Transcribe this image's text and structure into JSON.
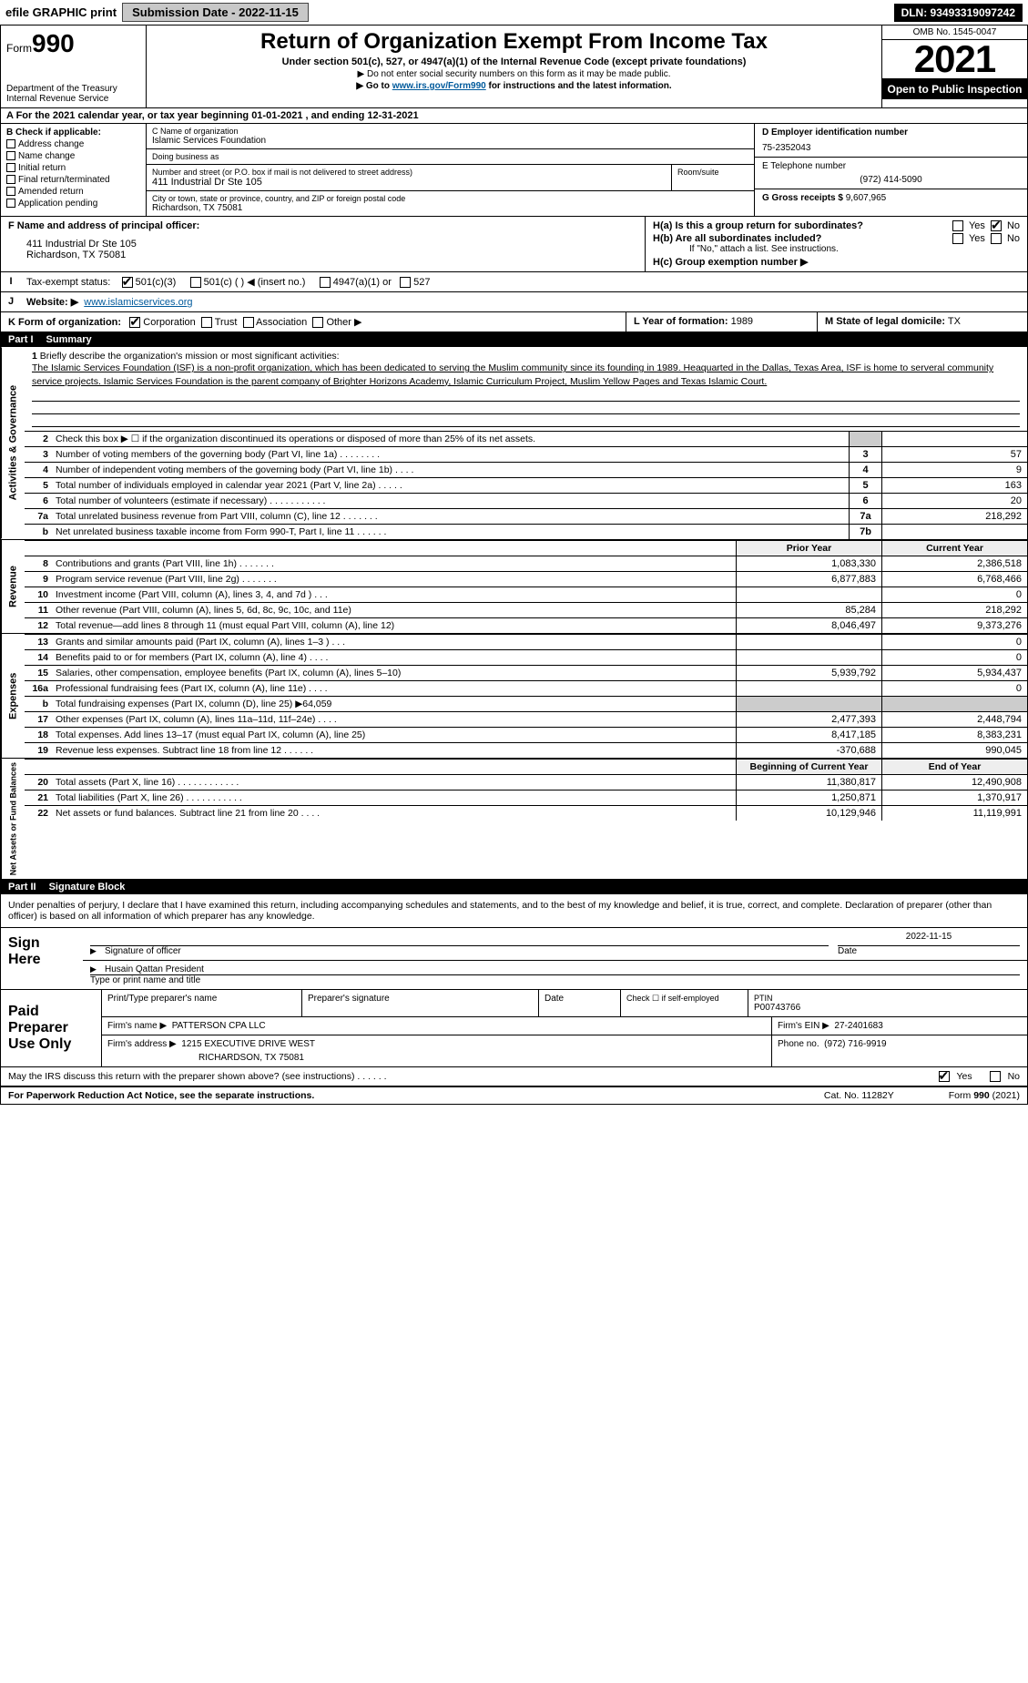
{
  "topbar": {
    "efile": "efile GRAPHIC print",
    "submission": "Submission Date - 2022-11-15",
    "dln": "DLN: 93493319097242"
  },
  "header": {
    "form_word": "Form",
    "form_no": "990",
    "dept": "Department of the Treasury",
    "irs": "Internal Revenue Service",
    "title": "Return of Organization Exempt From Income Tax",
    "subtitle": "Under section 501(c), 527, or 4947(a)(1) of the Internal Revenue Code (except private foundations)",
    "note1": "▶ Do not enter social security numbers on this form as it may be made public.",
    "note2_pre": "▶ Go to ",
    "note2_link": "www.irs.gov/Form990",
    "note2_post": " for instructions and the latest information.",
    "omb": "OMB No. 1545-0047",
    "year": "2021",
    "inspection": "Open to Public Inspection"
  },
  "row_a": "A For the 2021 calendar year, or tax year beginning 01-01-2021    , and ending 12-31-2021",
  "col_b": {
    "title": "B Check if applicable:",
    "items": [
      "Address change",
      "Name change",
      "Initial return",
      "Final return/terminated",
      "Amended return",
      "Application pending"
    ]
  },
  "col_c": {
    "label_name": "C Name of organization",
    "name": "Islamic Services Foundation",
    "dba_label": "Doing business as",
    "dba": "",
    "addr_label": "Number and street (or P.O. box if mail is not delivered to street address)",
    "room_label": "Room/suite",
    "addr": "411 Industrial Dr Ste 105",
    "city_label": "City or town, state or province, country, and ZIP or foreign postal code",
    "city": "Richardson, TX  75081"
  },
  "col_d": {
    "ein_label": "D Employer identification number",
    "ein": "75-2352043",
    "phone_label": "E Telephone number",
    "phone": "(972) 414-5090",
    "gross_label": "G Gross receipts $",
    "gross": "9,607,965"
  },
  "section_fh": {
    "f_label": "F  Name and address of principal officer:",
    "f_addr1": "411 Industrial Dr Ste 105",
    "f_addr2": "Richardson, TX  75081",
    "h_a": "H(a)  Is this a group return for subordinates?",
    "h_b": "H(b)  Are all subordinates included?",
    "h_b_note": "If \"No,\" attach a list. See instructions.",
    "h_c": "H(c)  Group exemption number ▶",
    "yes": "Yes",
    "no": "No"
  },
  "row_i": {
    "label": "Tax-exempt status:",
    "opt1": "501(c)(3)",
    "opt2": "501(c) (   ) ◀ (insert no.)",
    "opt3": "4947(a)(1) or",
    "opt4": "527"
  },
  "row_j": {
    "label": "Website: ▶",
    "val": "www.islamicservices.org"
  },
  "row_k": {
    "label": "K Form of organization:",
    "opts": [
      "Corporation",
      "Trust",
      "Association",
      "Other ▶"
    ]
  },
  "row_l": {
    "year_label": "L Year of formation:",
    "year": "1989",
    "state_label": "M State of legal domicile:",
    "state": "TX"
  },
  "part1": {
    "tag": "Part I",
    "title": "Summary"
  },
  "mission": {
    "num": "1",
    "label": "Briefly describe the organization's mission or most significant activities:",
    "text": "The Islamic Services Foundation (ISF) is a non-profit organization, which has been dedicated to serving the Muslim community since its founding in 1989. Heaquarted in the Dallas, Texas Area, ISF is home to serveral community service projects. Islamic Services Foundation is the parent company of Brighter Horizons Academy, Islamic Curriculum Project, Muslim Yellow Pages and Texas Islamic Court."
  },
  "gov_lines": [
    {
      "n": "2",
      "t": "Check this box ▶ ☐  if the organization discontinued its operations or disposed of more than 25% of its net assets.",
      "box": "",
      "v": ""
    },
    {
      "n": "3",
      "t": "Number of voting members of the governing body (Part VI, line 1a)   .    .    .    .    .    .    .    .",
      "box": "3",
      "v": "57"
    },
    {
      "n": "4",
      "t": "Number of independent voting members of the governing body (Part VI, line 1b)   .    .    .    .",
      "box": "4",
      "v": "9"
    },
    {
      "n": "5",
      "t": "Total number of individuals employed in calendar year 2021 (Part V, line 2a)  .    .    .    .    .",
      "box": "5",
      "v": "163"
    },
    {
      "n": "6",
      "t": "Total number of volunteers (estimate if necessary)   .    .    .    .    .    .    .    .    .    .    .",
      "box": "6",
      "v": "20"
    },
    {
      "n": "7a",
      "t": "Total unrelated business revenue from Part VIII, column (C), line 12  .    .    .    .    .    .    .",
      "box": "7a",
      "v": "218,292"
    },
    {
      "n": "b",
      "t": "Net unrelated business taxable income from Form 990-T, Part I, line 11  .    .    .    .    .    .",
      "box": "7b",
      "v": ""
    }
  ],
  "twocol_headers": {
    "prior": "Prior Year",
    "current": "Current Year"
  },
  "revenue": [
    {
      "n": "8",
      "t": "Contributions and grants (Part VIII, line 1h)   .    .    .    .    .    .    .",
      "p": "1,083,330",
      "c": "2,386,518"
    },
    {
      "n": "9",
      "t": "Program service revenue (Part VIII, line 2g)   .    .    .    .    .    .    .",
      "p": "6,877,883",
      "c": "6,768,466"
    },
    {
      "n": "10",
      "t": "Investment income (Part VIII, column (A), lines 3, 4, and 7d )   .    .    .",
      "p": "",
      "c": "0"
    },
    {
      "n": "11",
      "t": "Other revenue (Part VIII, column (A), lines 5, 6d, 8c, 9c, 10c, and 11e)",
      "p": "85,284",
      "c": "218,292"
    },
    {
      "n": "12",
      "t": "Total revenue—add lines 8 through 11 (must equal Part VIII, column (A), line 12)",
      "p": "8,046,497",
      "c": "9,373,276"
    }
  ],
  "expenses": [
    {
      "n": "13",
      "t": "Grants and similar amounts paid (Part IX, column (A), lines 1–3 )  .    .    .",
      "p": "",
      "c": "0"
    },
    {
      "n": "14",
      "t": "Benefits paid to or for members (Part IX, column (A), line 4)  .    .    .    .",
      "p": "",
      "c": "0"
    },
    {
      "n": "15",
      "t": "Salaries, other compensation, employee benefits (Part IX, column (A), lines 5–10)",
      "p": "5,939,792",
      "c": "5,934,437"
    },
    {
      "n": "16a",
      "t": "Professional fundraising fees (Part IX, column (A), line 11e)  .    .    .    .",
      "p": "",
      "c": "0"
    },
    {
      "n": "b",
      "t": "Total fundraising expenses (Part IX, column (D), line 25) ▶64,059",
      "p": "grey",
      "c": "grey"
    },
    {
      "n": "17",
      "t": "Other expenses (Part IX, column (A), lines 11a–11d, 11f–24e)  .    .    .    .",
      "p": "2,477,393",
      "c": "2,448,794"
    },
    {
      "n": "18",
      "t": "Total expenses. Add lines 13–17 (must equal Part IX, column (A), line 25)",
      "p": "8,417,185",
      "c": "8,383,231"
    },
    {
      "n": "19",
      "t": "Revenue less expenses. Subtract line 18 from line 12  .    .    .    .    .    .",
      "p": "-370,688",
      "c": "990,045"
    }
  ],
  "netassets_headers": {
    "begin": "Beginning of Current Year",
    "end": "End of Year"
  },
  "netassets": [
    {
      "n": "20",
      "t": "Total assets (Part X, line 16)  .    .    .    .    .    .    .    .    .    .    .    .",
      "p": "11,380,817",
      "c": "12,490,908"
    },
    {
      "n": "21",
      "t": "Total liabilities (Part X, line 26)  .    .    .    .    .    .    .    .    .    .    .",
      "p": "1,250,871",
      "c": "1,370,917"
    },
    {
      "n": "22",
      "t": "Net assets or fund balances. Subtract line 21 from line 20  .    .    .    .",
      "p": "10,129,946",
      "c": "11,119,991"
    }
  ],
  "part2": {
    "tag": "Part II",
    "title": "Signature Block"
  },
  "sig": {
    "intro": "Under penalties of perjury, I declare that I have examined this return, including accompanying schedules and statements, and to the best of my knowledge and belief, it is true, correct, and complete. Declaration of preparer (other than officer) is based on all information of which preparer has any knowledge.",
    "sign_here": "Sign Here",
    "sig_officer": "Signature of officer",
    "date_label": "Date",
    "date": "2022-11-15",
    "name": "Husain Qattan President",
    "name_label": "Type or print name and title"
  },
  "preparer": {
    "label1": "Paid",
    "label2": "Preparer",
    "label3": "Use Only",
    "h1": "Print/Type preparer's name",
    "h2": "Preparer's signature",
    "h3": "Date",
    "h4": "Check ☐ if self-employed",
    "h5": "PTIN",
    "ptin": "P00743766",
    "firm_name_label": "Firm's name    ▶",
    "firm_name": "PATTERSON CPA LLC",
    "firm_ein_label": "Firm's EIN ▶",
    "firm_ein": "27-2401683",
    "firm_addr_label": "Firm's address ▶",
    "firm_addr1": "1215 EXECUTIVE DRIVE WEST",
    "firm_addr2": "RICHARDSON, TX  75081",
    "phone_label": "Phone no.",
    "phone": "(972) 716-9919"
  },
  "discuss": {
    "q": "May the IRS discuss this return with the preparer shown above? (see instructions)   .    .    .    .    .    .",
    "yes": "Yes",
    "no": "No"
  },
  "footer": {
    "left": "For Paperwork Reduction Act Notice, see the separate instructions.",
    "mid": "Cat. No. 11282Y",
    "right": "Form 990 (2021)"
  },
  "vlabels": {
    "gov": "Activities & Governance",
    "rev": "Revenue",
    "exp": "Expenses",
    "net": "Net Assets or Fund Balances"
  }
}
